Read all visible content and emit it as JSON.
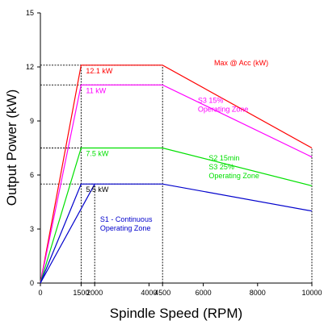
{
  "chart_data": {
    "type": "line",
    "xlabel": "Spindle Speed (RPM)",
    "ylabel": "Output Power (kW)",
    "xlim": [
      0,
      10000
    ],
    "ylim": [
      0,
      15
    ],
    "x_ticks": [
      "0",
      "1500",
      "2000",
      "4000",
      "4500",
      "6000",
      "8000",
      "10000"
    ],
    "x_tick_values": [
      0,
      1500,
      2000,
      4000,
      4500,
      6000,
      8000,
      10000
    ],
    "y_ticks": [
      "0",
      "3",
      "6",
      "9",
      "12",
      "15"
    ],
    "y_tick_values": [
      0,
      3,
      6,
      9,
      12,
      15
    ],
    "grid": false,
    "series": [
      {
        "name": "Max @ Acc (kW)",
        "color": "#ff0000",
        "label": "12.1 kW",
        "x": [
          0,
          1500,
          4500,
          10000
        ],
        "y": [
          0,
          12.1,
          12.1,
          7.5
        ]
      },
      {
        "name": "S3 15% Operating Zone",
        "color": "#ff00ff",
        "label": "11 kW",
        "x": [
          0,
          1500,
          4500,
          10000
        ],
        "y": [
          0,
          11,
          11,
          7.0
        ]
      },
      {
        "name": "S2 15min S3 25% Operating Zone",
        "color": "#00e000",
        "label": "7.5 kW",
        "x": [
          0,
          1500,
          4500,
          10000
        ],
        "y": [
          0,
          7.5,
          7.5,
          5.4
        ]
      },
      {
        "name": "S1 - Continuous Operating Zone",
        "color": "#0000cc",
        "label": "5.5 kW",
        "x": [
          0,
          1500,
          4500,
          10000
        ],
        "y": [
          0,
          5.5,
          5.5,
          4.0
        ]
      },
      {
        "name": "",
        "color": "#0000cc",
        "label": "",
        "x": [
          0,
          2000
        ],
        "y": [
          0,
          5.5
        ]
      }
    ],
    "zone_labels": [
      {
        "lines": [
          "Max @ Acc (kW)"
        ],
        "color": "#ff0000",
        "x": 6400,
        "y": 12.1
      },
      {
        "lines": [
          "S3 15%",
          "Operating Zone"
        ],
        "color": "#ff00ff",
        "x": 5800,
        "y": 10.0
      },
      {
        "lines": [
          "S2 15min",
          "S3 25%",
          "Operating Zone"
        ],
        "color": "#00e000",
        "x": 6200,
        "y": 6.8
      },
      {
        "lines": [
          "S1 - Continuous",
          "Operating Zone"
        ],
        "color": "#0000cc",
        "x": 2200,
        "y": 3.4
      }
    ],
    "guide_lines": {
      "vertical_x": [
        1500,
        2000,
        4500,
        10000
      ],
      "horizontal_y": [
        12.1,
        11,
        7.5,
        5.5
      ],
      "color": "#000000",
      "style": "dashed"
    }
  }
}
